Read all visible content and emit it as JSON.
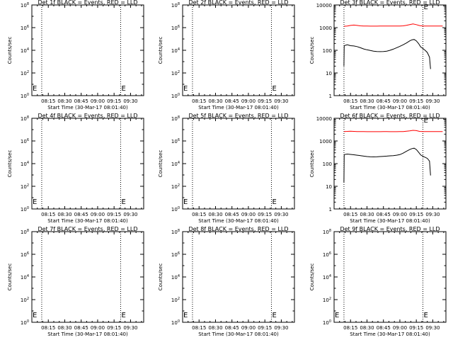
{
  "figure": {
    "xlabel_prefix": "Start Time",
    "start_time_label": "Start Time (30-Mar-17 08:01:40)",
    "ylabel": "Counts/sec"
  },
  "colors": {
    "events": "#000000",
    "lld": "#ff0000",
    "axes": "#000000",
    "background": "#ffffff"
  },
  "chart_data": [
    {
      "id": "det1",
      "type": "line",
      "title": "Det 1f BLACK = Events, RED = LLD",
      "xlabel": "Start Time (30-Mar-17 08:01:40)",
      "ylabel": "Counts/sec",
      "x_tick_labels": [
        "08:15",
        "08:30",
        "08:45",
        "09:00",
        "09:15",
        "09:30"
      ],
      "x_ticks_min": [
        15,
        30,
        45,
        60,
        75,
        90
      ],
      "xlim_min": [
        0,
        102
      ],
      "y_scale": "log",
      "ylim": [
        1,
        100000000
      ],
      "y_tick_labels": [
        "10^0",
        "10^1",
        "10^2",
        "10^3",
        "10^4",
        "10^5",
        "10^6",
        "10^7",
        "10^8"
      ],
      "y_ticks_shown": [
        "0",
        "1",
        "2",
        "3",
        "4"
      ],
      "y_tick_style": "mantissa-only",
      "dotted_lines_min": [
        9,
        81
      ],
      "markers": [
        {
          "label": "E",
          "x_min": 81,
          "y_value": 3
        }
      ],
      "series": []
    },
    {
      "id": "det2",
      "type": "line",
      "title": "Det 2f BLACK = Events, RED = LLD",
      "xlabel": "Start Time (30-Mar-17 08:01:40)",
      "ylabel": "Counts/sec",
      "x_tick_labels": [
        "08:15",
        "08:30",
        "08:45",
        "09:00",
        "09:15",
        "09:30"
      ],
      "x_ticks_min": [
        15,
        30,
        45,
        60,
        75,
        90
      ],
      "xlim_min": [
        0,
        102
      ],
      "y_scale": "log",
      "ylim": [
        1,
        100000000
      ],
      "y_tick_labels": [
        "10^0",
        "10^1",
        "10^2",
        "10^3",
        "10^4"
      ],
      "y_ticks_shown": [
        "0",
        "1",
        "2",
        "3",
        "4"
      ],
      "y_tick_style": "mantissa-only",
      "dotted_lines_min": [
        9,
        81
      ],
      "markers": [
        {
          "label": "E",
          "x_min": 81,
          "y_value": 3
        }
      ],
      "series": []
    },
    {
      "id": "det3",
      "type": "line",
      "title": "Det 3f BLACK = Events, RED = LLD",
      "xlabel": "Start Time (30-Mar-17 08:01:40)",
      "ylabel": "Counts/sec",
      "x_tick_labels": [
        "08:15",
        "08:30",
        "08:45",
        "09:00",
        "09:15",
        "09:30"
      ],
      "x_ticks_min": [
        15,
        30,
        45,
        60,
        75,
        90
      ],
      "xlim_min": [
        0,
        102
      ],
      "y_scale": "log",
      "ylim": [
        1,
        10000
      ],
      "y_tick_labels": [
        "1",
        "10",
        "100",
        "1000",
        "10000"
      ],
      "y_tick_style": "plain",
      "dotted_lines_min": [
        9,
        81
      ],
      "markers": [
        {
          "label": "E",
          "x_min": 81,
          "y_value": 8000
        }
      ],
      "series": [
        {
          "color": "#ff0000",
          "role": "lld",
          "x": [
            9,
            12,
            15,
            18,
            21,
            24,
            27,
            30,
            33,
            36,
            39,
            42,
            45,
            48,
            51,
            54,
            57,
            60,
            63,
            66,
            69,
            72,
            75,
            78,
            81,
            84,
            87,
            90,
            93,
            96,
            99
          ],
          "y": [
            1150,
            1180,
            1250,
            1300,
            1250,
            1200,
            1180,
            1170,
            1160,
            1160,
            1160,
            1170,
            1180,
            1180,
            1170,
            1170,
            1170,
            1180,
            1200,
            1260,
            1350,
            1450,
            1350,
            1230,
            1180,
            1170,
            1170,
            1170,
            1170,
            1170,
            1170
          ]
        },
        {
          "color": "#000000",
          "role": "events",
          "x": [
            9,
            9.2,
            12,
            15,
            18,
            21,
            24,
            27,
            30,
            33,
            36,
            39,
            42,
            45,
            48,
            51,
            54,
            57,
            60,
            63,
            66,
            69,
            71,
            73,
            75,
            77,
            79,
            81,
            83,
            85,
            87,
            88
          ],
          "y": [
            20,
            160,
            175,
            160,
            155,
            145,
            130,
            115,
            105,
            98,
            92,
            88,
            87,
            88,
            92,
            100,
            112,
            130,
            150,
            175,
            210,
            260,
            290,
            300,
            260,
            200,
            140,
            120,
            100,
            80,
            50,
            15
          ]
        }
      ]
    },
    {
      "id": "det4",
      "type": "line",
      "title": "Det 4f BLACK = Events, RED = LLD",
      "xlabel": "Start Time (30-Mar-17 08:01:40)",
      "ylabel": "Counts/sec",
      "x_tick_labels": [
        "08:15",
        "08:30",
        "08:45",
        "09:00",
        "09:15",
        "09:30"
      ],
      "x_ticks_min": [
        15,
        30,
        45,
        60,
        75,
        90
      ],
      "xlim_min": [
        0,
        102
      ],
      "y_scale": "log",
      "ylim": [
        1,
        100000000
      ],
      "y_tick_labels": [
        "10^0",
        "10^1",
        "10^2",
        "10^3",
        "10^4"
      ],
      "y_ticks_shown": [
        "0",
        "1",
        "2",
        "3",
        "4"
      ],
      "y_tick_style": "mantissa-only",
      "dotted_lines_min": [
        9,
        81
      ],
      "markers": [
        {
          "label": "E",
          "x_min": 81,
          "y_value": 3
        }
      ],
      "series": []
    },
    {
      "id": "det5",
      "type": "line",
      "title": "Det 5f BLACK = Events, RED = LLD",
      "xlabel": "Start Time (30-Mar-17 08:01:40)",
      "ylabel": "Counts/sec",
      "x_tick_labels": [
        "08:15",
        "08:30",
        "08:45",
        "09:00",
        "09:15",
        "09:30"
      ],
      "x_ticks_min": [
        15,
        30,
        45,
        60,
        75,
        90
      ],
      "xlim_min": [
        0,
        102
      ],
      "y_scale": "log",
      "ylim": [
        1,
        100000000
      ],
      "y_tick_labels": [
        "10^0",
        "10^1",
        "10^2",
        "10^3",
        "10^4"
      ],
      "y_ticks_shown": [
        "0",
        "1",
        "2",
        "3",
        "4"
      ],
      "y_tick_style": "mantissa-only",
      "dotted_lines_min": [
        9,
        81
      ],
      "markers": [
        {
          "label": "E",
          "x_min": 81,
          "y_value": 3
        }
      ],
      "series": []
    },
    {
      "id": "det6",
      "type": "line",
      "title": "Det 6f BLACK = Events, RED = LLD",
      "xlabel": "Start Time (30-Mar-17 08:01:40)",
      "ylabel": "Counts/sec",
      "x_tick_labels": [
        "08:15",
        "08:30",
        "08:45",
        "09:00",
        "09:15",
        "09:30"
      ],
      "x_ticks_min": [
        15,
        30,
        45,
        60,
        75,
        90
      ],
      "xlim_min": [
        0,
        102
      ],
      "y_scale": "log",
      "ylim": [
        1,
        10000
      ],
      "y_tick_labels": [
        "1",
        "10",
        "100",
        "1000",
        "10000"
      ],
      "y_tick_style": "plain",
      "dotted_lines_min": [
        9,
        81
      ],
      "markers": [
        {
          "label": "E",
          "x_min": 81,
          "y_value": 8000
        }
      ],
      "series": [
        {
          "color": "#ff0000",
          "role": "lld",
          "x": [
            9,
            12,
            15,
            18,
            21,
            24,
            27,
            30,
            33,
            36,
            39,
            42,
            45,
            48,
            51,
            54,
            57,
            60,
            63,
            66,
            69,
            72,
            75,
            78,
            81,
            84,
            87,
            90,
            93,
            96,
            99
          ],
          "y": [
            2600,
            2650,
            2700,
            2650,
            2600,
            2600,
            2580,
            2570,
            2560,
            2560,
            2560,
            2570,
            2580,
            2580,
            2570,
            2570,
            2570,
            2580,
            2600,
            2700,
            2800,
            2950,
            2850,
            2650,
            2600,
            2600,
            2600,
            2600,
            2600,
            2600,
            2600
          ]
        },
        {
          "color": "#000000",
          "role": "events",
          "x": [
            9,
            9.2,
            12,
            15,
            18,
            21,
            24,
            27,
            30,
            33,
            36,
            39,
            42,
            45,
            48,
            51,
            54,
            57,
            60,
            63,
            66,
            69,
            71,
            73,
            75,
            77,
            79,
            81,
            83,
            85,
            87,
            88
          ],
          "y": [
            15,
            250,
            265,
            255,
            245,
            235,
            225,
            215,
            205,
            200,
            198,
            200,
            205,
            210,
            215,
            220,
            225,
            235,
            250,
            290,
            350,
            420,
            460,
            480,
            420,
            320,
            240,
            210,
            190,
            170,
            130,
            30
          ]
        }
      ]
    },
    {
      "id": "det7",
      "type": "line",
      "title": "Det 7f BLACK = Events, RED = LLD",
      "xlabel": "Start Time (30-Mar-17 08:01:40)",
      "ylabel": "Counts/sec",
      "x_tick_labels": [
        "08:15",
        "08:30",
        "08:45",
        "09:00",
        "09:15",
        "09:30"
      ],
      "x_ticks_min": [
        15,
        30,
        45,
        60,
        75,
        90
      ],
      "xlim_min": [
        0,
        102
      ],
      "y_scale": "log",
      "ylim": [
        1,
        100000000
      ],
      "y_tick_labels": [
        "10^0",
        "10^1",
        "10^2",
        "10^3",
        "10^4"
      ],
      "y_ticks_shown": [
        "0",
        "1",
        "2",
        "3",
        "4"
      ],
      "y_tick_style": "mantissa-only",
      "dotted_lines_min": [
        9,
        81
      ],
      "markers": [
        {
          "label": "E",
          "x_min": 81,
          "y_value": 3
        }
      ],
      "series": []
    },
    {
      "id": "det8",
      "type": "line",
      "title": "Det 8f BLACK = Events, RED = LLD",
      "xlabel": "Start Time (30-Mar-17 08:01:40)",
      "ylabel": "Counts/sec",
      "x_tick_labels": [
        "08:15",
        "08:30",
        "08:45",
        "09:00",
        "09:15",
        "09:30"
      ],
      "x_ticks_min": [
        15,
        30,
        45,
        60,
        75,
        90
      ],
      "xlim_min": [
        0,
        102
      ],
      "y_scale": "log",
      "ylim": [
        1,
        100000000
      ],
      "y_tick_labels": [
        "10^0",
        "10^1",
        "10^2",
        "10^3",
        "10^4"
      ],
      "y_ticks_shown": [
        "0",
        "1",
        "2",
        "3",
        "4"
      ],
      "y_tick_style": "mantissa-only",
      "dotted_lines_min": [
        9,
        81
      ],
      "markers": [
        {
          "label": "E",
          "x_min": 81,
          "y_value": 3
        }
      ],
      "series": []
    },
    {
      "id": "det9",
      "type": "line",
      "title": "Det 9f BLACK = Events, RED = LLD",
      "xlabel": "Start Time (30-Mar-17 08:01:40)",
      "ylabel": "Counts/sec",
      "x_tick_labels": [
        "08:15",
        "08:30",
        "08:45",
        "09:00",
        "09:15",
        "09:30"
      ],
      "x_ticks_min": [
        15,
        30,
        45,
        60,
        75,
        90
      ],
      "xlim_min": [
        0,
        102
      ],
      "y_scale": "log",
      "ylim": [
        1,
        100000000
      ],
      "y_tick_labels": [
        "10^0",
        "10^1",
        "10^2",
        "10^3",
        "10^4"
      ],
      "y_ticks_shown": [
        "0",
        "1",
        "2",
        "3",
        "4"
      ],
      "y_tick_style": "mantissa-only",
      "dotted_lines_min": [
        9,
        81
      ],
      "markers": [
        {
          "label": "E",
          "x_min": 81,
          "y_value": 3
        }
      ],
      "series": []
    }
  ]
}
